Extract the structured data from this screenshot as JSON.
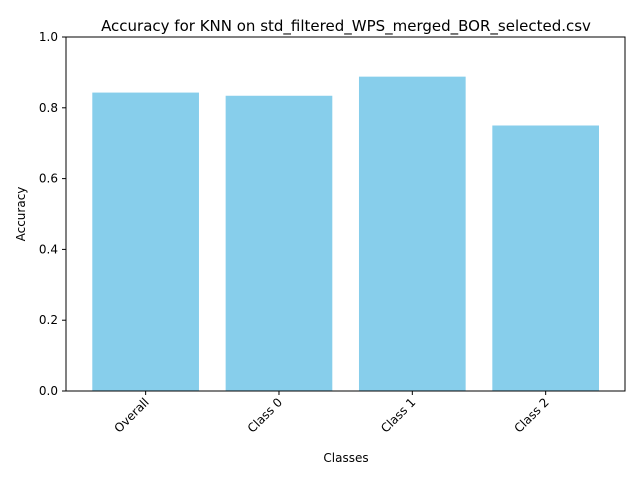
{
  "chart_data": {
    "type": "bar",
    "title": "Accuracy for KNN on std_filtered_WPS_merged_BOR_selected.csv",
    "xlabel": "Classes",
    "ylabel": "Accuracy",
    "categories": [
      "Overall",
      "Class 0",
      "Class 1",
      "Class 2"
    ],
    "values": [
      0.843,
      0.834,
      0.888,
      0.75
    ],
    "ylim": [
      0,
      1
    ],
    "yticks": [
      "0.0",
      "0.2",
      "0.4",
      "0.6",
      "0.8",
      "1.0"
    ],
    "grid": false,
    "bar_color": "#87CEEB"
  }
}
